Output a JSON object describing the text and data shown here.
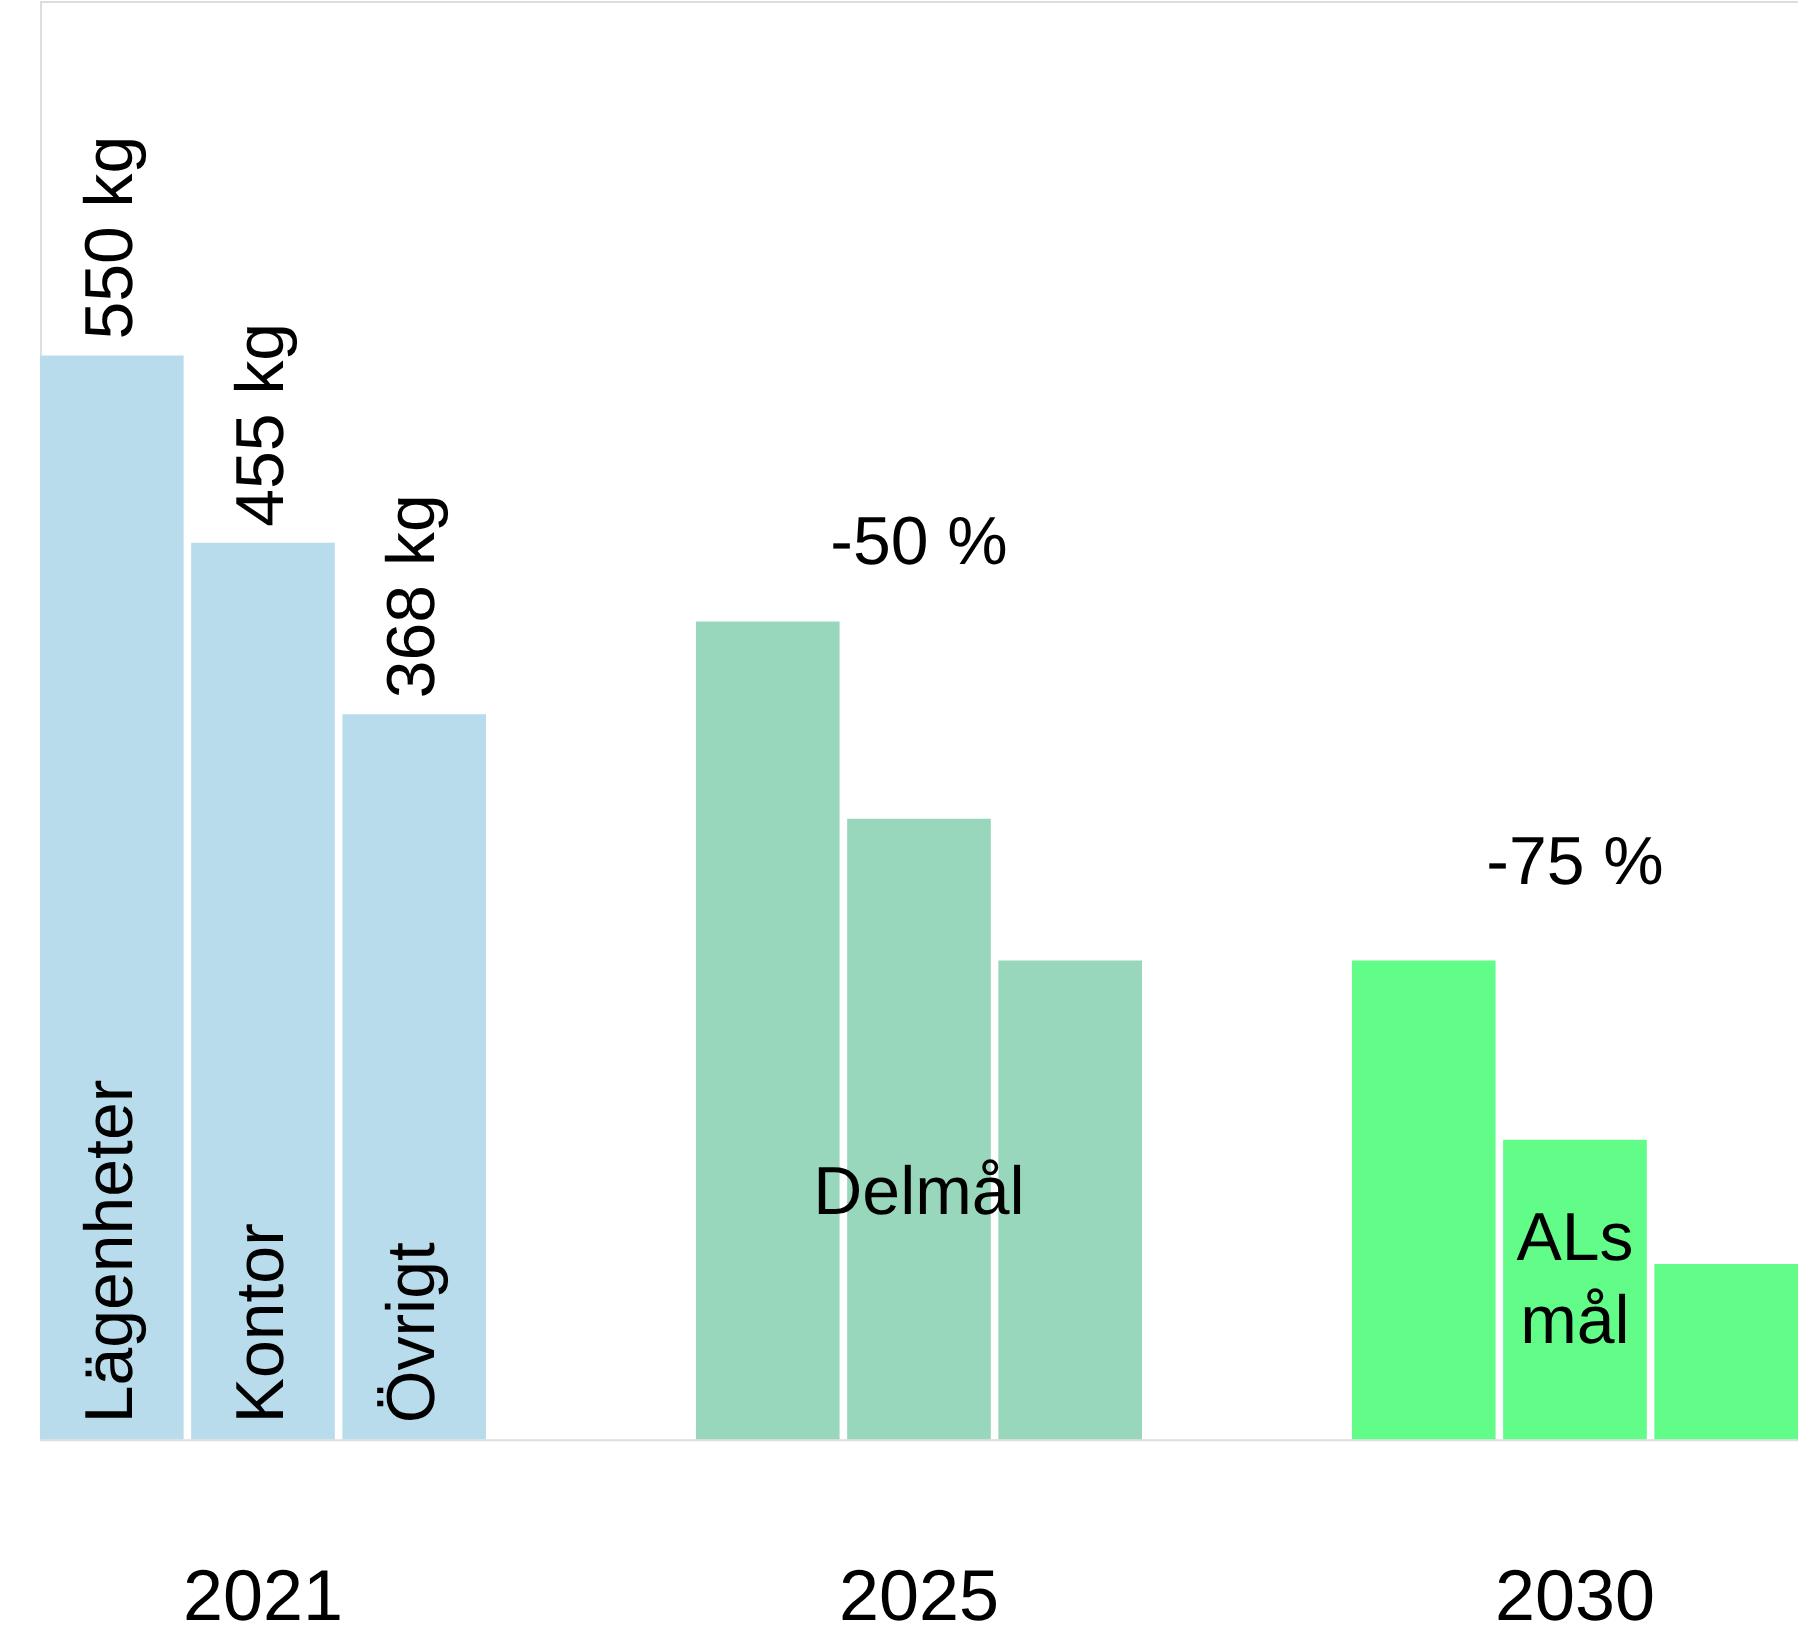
{
  "chart_data": {
    "type": "bar",
    "categories": [
      "2021",
      "2025",
      "2030"
    ],
    "ylim": [
      0,
      730
    ],
    "series": [
      {
        "name": "Lägenheter",
        "colors": [
          "#b8dcec",
          "#98d7bb",
          "#62fc88"
        ],
        "values": [
          550,
          415,
          243
        ],
        "value_labels": [
          "550 kg",
          null,
          null
        ]
      },
      {
        "name": "Kontor",
        "colors": [
          "#b8dcec",
          "#98d7bb",
          "#62fc88"
        ],
        "values": [
          455,
          315,
          152
        ],
        "value_labels": [
          "455 kg",
          null,
          null
        ]
      },
      {
        "name": "Övrigt",
        "colors": [
          "#b8dcec",
          "#98d7bb",
          "#62fc88"
        ],
        "values": [
          368,
          243,
          89
        ],
        "value_labels": [
          "368 kg",
          null,
          null
        ]
      }
    ],
    "annotations": [
      "-50 %",
      "-75 %",
      "Delmål",
      "ALs mål"
    ]
  }
}
